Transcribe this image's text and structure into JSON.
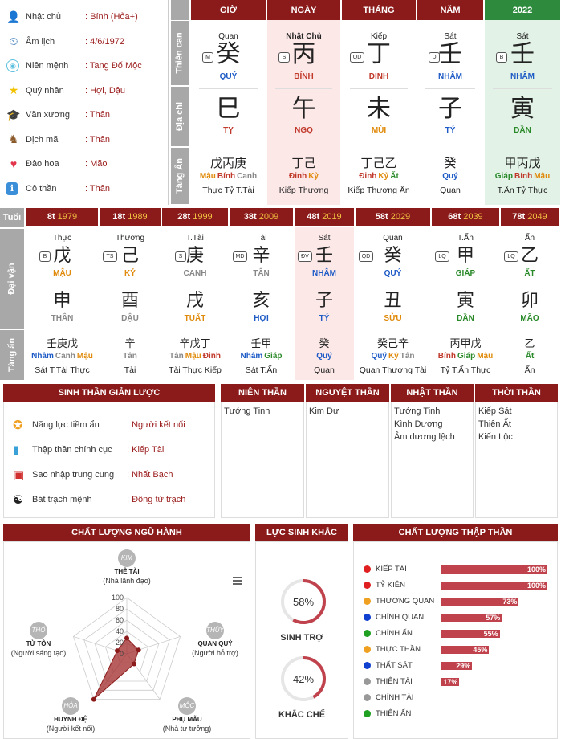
{
  "info": [
    {
      "icon": "user-icon",
      "label": "Nhật chủ",
      "value": ": Bính (Hỏa+)"
    },
    {
      "icon": "history-icon",
      "label": "Âm lịch",
      "value": ": 4/6/1972"
    },
    {
      "icon": "fingerprint-icon",
      "label": "Niên mệnh",
      "value": ": Tang Đố Mộc"
    },
    {
      "icon": "star-icon",
      "label": "Quý nhân",
      "value": ": Hợi, Dậu"
    },
    {
      "icon": "graduation-cap-icon",
      "label": "Văn xương",
      "value": ": Thân"
    },
    {
      "icon": "horse-icon",
      "label": "Dịch mã",
      "value": ": Thân"
    },
    {
      "icon": "heart-icon",
      "label": "Đào hoa",
      "value": ": Mão"
    },
    {
      "icon": "person-icon",
      "label": "Cô thần",
      "value": ": Thân"
    }
  ],
  "row_labels": {
    "thien_can": "Thiên can",
    "dia_chi": "Địa chi",
    "tang_an": "Tàng Ẩn",
    "tuoi": "Tuổi",
    "dai_van": "Đại vận",
    "tang_an2": "Tàng ẩn"
  },
  "pillars": [
    {
      "head": "GIỜ",
      "god": "Quan",
      "tag": "M",
      "stem": "癸",
      "stem_name": "QUÝ",
      "stem_color": "blue",
      "branch": "巳",
      "branch_name": "TỴ",
      "branch_color": "red",
      "hidden": "戊丙庚",
      "hidden_names": [
        [
          "Mậu",
          "orange"
        ],
        [
          "Bính",
          "red"
        ],
        [
          "Canh",
          "gray"
        ]
      ],
      "hidden_gods": "Thực Tỷ T.Tài",
      "bg": "#fff",
      "headbg": "#8b1a1a"
    },
    {
      "head": "NGÀY",
      "god": "Nhật Chủ",
      "tag": "S",
      "stem": "丙",
      "stem_name": "BÍNH",
      "stem_color": "red",
      "branch": "午",
      "branch_name": "NGỌ",
      "branch_color": "red",
      "hidden": "丁己",
      "hidden_names": [
        [
          "Đinh",
          "red"
        ],
        [
          "Kỷ",
          "orange"
        ]
      ],
      "hidden_gods": "Kiếp Thương",
      "bg": "#fde8e8",
      "headbg": "#8b1a1a"
    },
    {
      "head": "THÁNG",
      "god": "Kiếp",
      "tag": "QD",
      "stem": "丁",
      "stem_name": "ĐINH",
      "stem_color": "red",
      "branch": "未",
      "branch_name": "MÙI",
      "branch_color": "orange",
      "hidden": "丁己乙",
      "hidden_names": [
        [
          "Đinh",
          "red"
        ],
        [
          "Kỷ",
          "orange"
        ],
        [
          "Ất",
          "green"
        ]
      ],
      "hidden_gods": "Kiếp Thương Ấn",
      "bg": "#fff",
      "headbg": "#8b1a1a"
    },
    {
      "head": "NĂM",
      "god": "Sát",
      "tag": "D",
      "stem": "壬",
      "stem_name": "NHÂM",
      "stem_color": "blue",
      "branch": "子",
      "branch_name": "TÝ",
      "branch_color": "blue",
      "hidden": "癸",
      "hidden_names": [
        [
          "Quý",
          "blue"
        ]
      ],
      "hidden_gods": "Quan",
      "bg": "#fff",
      "headbg": "#8b1a1a"
    },
    {
      "head": "2022",
      "god": "Sát",
      "tag": "B",
      "stem": "壬",
      "stem_name": "NHÂM",
      "stem_color": "blue",
      "branch": "寅",
      "branch_name": "DẦN",
      "branch_color": "green",
      "hidden": "甲丙戊",
      "hidden_names": [
        [
          "Giáp",
          "green"
        ],
        [
          "Bính",
          "red"
        ],
        [
          "Mậu",
          "orange"
        ]
      ],
      "hidden_gods": "T.Ấn Tỷ Thực",
      "bg": "#e2f2e6",
      "headbg": "#2e8b3e"
    }
  ],
  "luck": [
    {
      "age": "8t",
      "year": "1979",
      "god": "Thực",
      "tag": "B",
      "stem": "戊",
      "stem_name": "MẬU",
      "stem_color": "orange",
      "branch": "申",
      "branch_name": "THÂN",
      "branch_color": "gray",
      "hidden": "壬庚戊",
      "hidden_names": [
        [
          "Nhâm",
          "blue"
        ],
        [
          "Canh",
          "gray"
        ],
        [
          "Mậu",
          "orange"
        ]
      ],
      "hidden_gods": "Sát T.Tài Thực",
      "bg": "#fff"
    },
    {
      "age": "18t",
      "year": "1989",
      "god": "Thương",
      "tag": "TS",
      "stem": "己",
      "stem_name": "KỶ",
      "stem_color": "orange",
      "branch": "酉",
      "branch_name": "DẬU",
      "branch_color": "gray",
      "hidden": "辛",
      "hidden_names": [
        [
          "Tân",
          "gray"
        ]
      ],
      "hidden_gods": "Tài",
      "bg": "#fff"
    },
    {
      "age": "28t",
      "year": "1999",
      "god": "T.Tài",
      "tag": "S",
      "stem": "庚",
      "stem_name": "CANH",
      "stem_color": "gray",
      "branch": "戌",
      "branch_name": "TUẤT",
      "branch_color": "orange",
      "hidden": "辛戊丁",
      "hidden_names": [
        [
          "Tân",
          "gray"
        ],
        [
          "Mậu",
          "orange"
        ],
        [
          "Đinh",
          "red"
        ]
      ],
      "hidden_gods": "Tài Thực Kiếp",
      "bg": "#fff"
    },
    {
      "age": "38t",
      "year": "2009",
      "god": "Tài",
      "tag": "MD",
      "stem": "辛",
      "stem_name": "TÂN",
      "stem_color": "gray",
      "branch": "亥",
      "branch_name": "HỢI",
      "branch_color": "blue",
      "hidden": "壬甲",
      "hidden_names": [
        [
          "Nhâm",
          "blue"
        ],
        [
          "Giáp",
          "green"
        ]
      ],
      "hidden_gods": "Sát T.Ấn",
      "bg": "#fff"
    },
    {
      "age": "48t",
      "year": "2019",
      "god": "Sát",
      "tag": "ĐV",
      "stem": "壬",
      "stem_name": "NHÂM",
      "stem_color": "blue",
      "branch": "子",
      "branch_name": "TÝ",
      "branch_color": "blue",
      "hidden": "癸",
      "hidden_names": [
        [
          "Quý",
          "blue"
        ]
      ],
      "hidden_gods": "Quan",
      "bg": "#fde8e8"
    },
    {
      "age": "58t",
      "year": "2029",
      "god": "Quan",
      "tag": "QD",
      "stem": "癸",
      "stem_name": "QUÝ",
      "stem_color": "blue",
      "branch": "丑",
      "branch_name": "SỬU",
      "branch_color": "orange",
      "hidden": "癸己辛",
      "hidden_names": [
        [
          "Quý",
          "blue"
        ],
        [
          "Kỷ",
          "orange"
        ],
        [
          "Tân",
          "gray"
        ]
      ],
      "hidden_gods": "Quan Thương Tài",
      "bg": "#fff"
    },
    {
      "age": "68t",
      "year": "2039",
      "god": "T.Ấn",
      "tag": "LQ",
      "stem": "甲",
      "stem_name": "GIÁP",
      "stem_color": "green",
      "branch": "寅",
      "branch_name": "DẦN",
      "branch_color": "green",
      "hidden": "丙甲戊",
      "hidden_names": [
        [
          "Bính",
          "red"
        ],
        [
          "Giáp",
          "green"
        ],
        [
          "Mậu",
          "orange"
        ]
      ],
      "hidden_gods": "Tỷ T.Ấn Thực",
      "bg": "#fff"
    },
    {
      "age": "78t",
      "year": "2049",
      "god": "Ấn",
      "tag": "LQ",
      "stem": "乙",
      "stem_name": "ẤT",
      "stem_color": "green",
      "branch": "卯",
      "branch_name": "MÃO",
      "branch_color": "green",
      "hidden": "乙",
      "hidden_names": [
        [
          "Ất",
          "green"
        ]
      ],
      "hidden_gods": "Ấn",
      "bg": "#fff"
    }
  ],
  "summary": {
    "title": "SINH THẦN GIẢN LƯỢC",
    "items": [
      {
        "icon": "medal-icon",
        "label": "Năng lực tiềm ẩn",
        "value": ": Người kết nối"
      },
      {
        "icon": "chart-icon",
        "label": "Thập thần chính cục",
        "value": ": Kiếp Tài"
      },
      {
        "icon": "phone-icon",
        "label": "Sao nhập trung cung",
        "value": ": Nhất Bạch"
      },
      {
        "icon": "yinyang-icon",
        "label": "Bát trạch mệnh",
        "value": ": Đông tứ trạch"
      }
    ]
  },
  "than": [
    {
      "title": "NIÊN THẦN",
      "items": [
        "Tướng Tinh"
      ]
    },
    {
      "title": "NGUYỆT THẦN",
      "items": [
        "Kim Dư"
      ]
    },
    {
      "title": "NHẬT THẦN",
      "items": [
        "Tướng Tinh",
        "Kình Dương",
        "Âm dương lệch"
      ]
    },
    {
      "title": "THỜI THẦN",
      "items": [
        "Kiếp Sát",
        "Thiên Ất",
        "Kiến Lộc"
      ]
    }
  ],
  "ngu_hanh": {
    "title": "CHẤT LƯỢNG NGŨ HÀNH",
    "scale": [
      "100",
      "80",
      "60",
      "40",
      "20",
      "0"
    ],
    "elements": [
      {
        "badge": "KIM",
        "name": "THÊ TÀI",
        "desc": "(Nhà lãnh đạo)",
        "value": 28
      },
      {
        "badge": "THỦY",
        "name": "QUAN QUỶ",
        "desc": "(Người hỗ trợ)",
        "value": 22
      },
      {
        "badge": "MỘC",
        "name": "PHỤ MẪU",
        "desc": "(Nhà tư tưởng)",
        "value": 22
      },
      {
        "badge": "HỎA",
        "name": "HUYNH ĐỆ",
        "desc": "(Người kết nối)",
        "value": 100
      },
      {
        "badge": "THỔ",
        "name": "TỬ TÔN",
        "desc": "(Người sáng tạo)",
        "value": 18
      }
    ]
  },
  "sinh_khac": {
    "title": "LỰC SINH KHẮC",
    "items": [
      {
        "pct": "58%",
        "value": 58,
        "label": "SINH TRỢ"
      },
      {
        "pct": "42%",
        "value": 42,
        "label": "KHẮC CHẾ"
      }
    ]
  },
  "thap_than": {
    "title": "CHẤT LƯỢNG THẬP THẦN",
    "items": [
      {
        "name": "KIẾP TÀI",
        "color": "#e02020",
        "value": 100,
        "pct": "100%"
      },
      {
        "name": "TỶ KIÊN",
        "color": "#e02020",
        "value": 100,
        "pct": "100%"
      },
      {
        "name": "THƯƠNG QUAN",
        "color": "#f0a020",
        "value": 73,
        "pct": "73%"
      },
      {
        "name": "CHÍNH QUAN",
        "color": "#1040d0",
        "value": 57,
        "pct": "57%"
      },
      {
        "name": "CHÍNH ẤN",
        "color": "#20a020",
        "value": 55,
        "pct": "55%"
      },
      {
        "name": "THỰC THẦN",
        "color": "#f0a020",
        "value": 45,
        "pct": "45%"
      },
      {
        "name": "THẤT SÁT",
        "color": "#1040d0",
        "value": 29,
        "pct": "29%"
      },
      {
        "name": "THIÊN TÀI",
        "color": "#999999",
        "value": 17,
        "pct": "17%"
      },
      {
        "name": "CHÍNH TÀI",
        "color": "#999999",
        "value": 0,
        "pct": ""
      },
      {
        "name": "THIÊN ẤN",
        "color": "#20a020",
        "value": 0,
        "pct": ""
      }
    ]
  }
}
